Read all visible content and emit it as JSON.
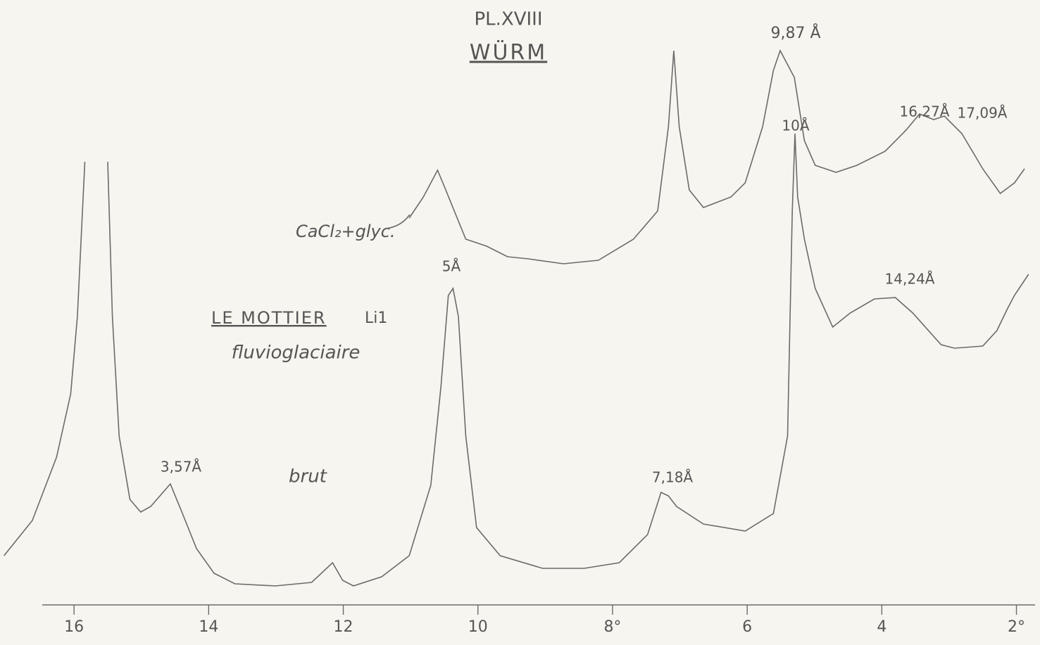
{
  "chart_data": {
    "type": "line",
    "title": "PL.XVIII",
    "subtitle": "WÜRM",
    "xlim": [
      17.1,
      1.65
    ],
    "ylim": [
      0,
      860
    ],
    "xticks": [
      16,
      14,
      12,
      10,
      {
        "value": 8,
        "label": "8°"
      },
      6,
      4,
      {
        "value": 2,
        "label": "2°"
      }
    ],
    "series": [
      {
        "name": "brut",
        "color": "#6b6b6b",
        "x": [
          17.04,
          16.62,
          16.26,
          16.05,
          15.95,
          15.84,
          15.69,
          15.5,
          15.43,
          15.33,
          15.17,
          15.01,
          14.86,
          14.57,
          14.39,
          14.18,
          13.92,
          13.61,
          13.01,
          12.47,
          12.16,
          12.01,
          11.85,
          11.43,
          11.02,
          10.7,
          10.55,
          10.44,
          10.37,
          10.29,
          10.18,
          10.02,
          9.67,
          9.04,
          8.42,
          7.9,
          7.48,
          7.28,
          7.17,
          7.05,
          6.65,
          6.03,
          5.61,
          5.4,
          5.33,
          5.29,
          5.25,
          5.15,
          4.99,
          4.73,
          4.47,
          4.11,
          3.8,
          3.54,
          3.12,
          2.92,
          2.5,
          2.29,
          2.14,
          2.03,
          1.82
        ],
        "values": [
          70,
          120,
          210,
          300,
          410,
          630,
          null,
          630,
          410,
          240,
          150,
          132,
          140,
          172,
          130,
          80,
          45,
          30,
          27,
          32,
          60,
          35,
          27,
          40,
          70,
          170,
          310,
          440,
          450,
          410,
          240,
          110,
          70,
          52,
          52,
          60,
          100,
          160,
          155,
          140,
          115,
          105,
          130,
          240,
          560,
          670,
          580,
          520,
          450,
          395,
          415,
          435,
          437,
          415,
          370,
          365,
          368,
          390,
          420,
          440,
          470
        ]
      },
      {
        "name": "CaCl₂+glyc.",
        "color": "#6b6b6b",
        "x": [
          11.02,
          10.81,
          10.6,
          10.5,
          10.18,
          9.87,
          9.56,
          9.25,
          8.73,
          8.21,
          7.69,
          7.33,
          7.17,
          7.09,
          7.01,
          6.86,
          6.65,
          6.24,
          6.03,
          5.77,
          5.61,
          5.51,
          5.3,
          5.15,
          4.99,
          4.68,
          4.37,
          3.95,
          3.64,
          3.44,
          3.23,
          3.07,
          2.81,
          2.5,
          2.24,
          2.03,
          1.88
        ],
        "values": [
          550,
          580,
          618,
          595,
          520,
          510,
          495,
          492,
          485,
          490,
          520,
          560,
          680,
          788,
          680,
          590,
          565,
          580,
          600,
          680,
          760,
          788,
          750,
          660,
          625,
          615,
          625,
          645,
          675,
          698,
          690,
          695,
          670,
          620,
          585,
          600,
          620
        ]
      }
    ],
    "annotations": [
      "9,87 Å",
      "10Å",
      "16,27Å",
      "17,09Å",
      "5Å",
      "14,24Å",
      "LE MOTTIER",
      "Li1",
      "fluvioglaciaire",
      "3,57Å",
      "7,18Å"
    ]
  }
}
